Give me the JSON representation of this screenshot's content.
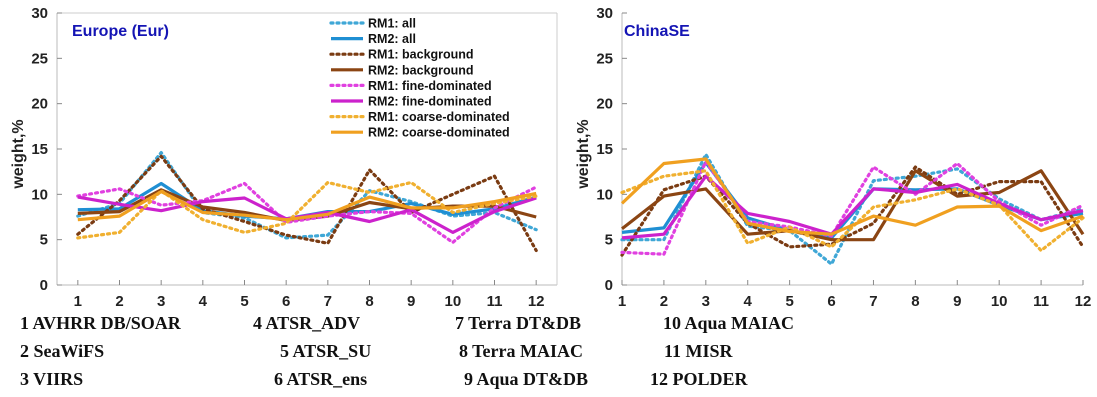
{
  "chart_data": [
    {
      "type": "line",
      "title": "Europe (Eur)",
      "xlabel": "",
      "ylabel": "weight,%",
      "x": [
        1,
        2,
        3,
        4,
        5,
        6,
        7,
        8,
        9,
        10,
        11,
        12
      ],
      "xlim": [
        0.5,
        12.5
      ],
      "ylim": [
        0,
        30
      ],
      "yticks": [
        0,
        5,
        10,
        15,
        20,
        25,
        30
      ],
      "legend": "top-right",
      "grid": false,
      "series": [
        {
          "name": "RM1: all",
          "color": "#3fa7d6",
          "style": "dotted",
          "values": [
            7.6,
            9.0,
            14.6,
            8.0,
            7.4,
            5.2,
            5.5,
            10.4,
            9.2,
            7.6,
            8.0,
            6.1
          ]
        },
        {
          "name": "RM2: all",
          "color": "#1f8fd3",
          "style": "solid",
          "values": [
            8.3,
            8.4,
            11.2,
            8.2,
            7.6,
            7.3,
            8.1,
            8.1,
            9.0,
            7.8,
            8.4,
            9.7
          ]
        },
        {
          "name": "RM1: background",
          "color": "#7a3b12",
          "style": "dotted",
          "values": [
            5.6,
            9.3,
            14.2,
            8.4,
            7.0,
            5.5,
            4.6,
            12.7,
            8.0,
            10.0,
            12.0,
            3.8
          ]
        },
        {
          "name": "RM2: background",
          "color": "#8b4513",
          "style": "solid",
          "values": [
            7.9,
            8.1,
            10.5,
            8.6,
            8.0,
            7.1,
            7.6,
            9.1,
            8.4,
            8.7,
            8.7,
            7.5
          ]
        },
        {
          "name": "RM1: fine-dominated",
          "color": "#e040e0",
          "style": "dotted",
          "values": [
            9.8,
            10.6,
            8.8,
            9.3,
            11.2,
            6.9,
            7.6,
            8.1,
            7.9,
            4.7,
            8.5,
            10.8
          ]
        },
        {
          "name": "RM2: fine-dominated",
          "color": "#cc22cc",
          "style": "solid",
          "values": [
            9.7,
            8.9,
            8.2,
            9.2,
            9.6,
            7.3,
            8.0,
            7.0,
            8.3,
            5.8,
            8.1,
            9.6
          ]
        },
        {
          "name": "RM1: coarse-dominated",
          "color": "#f0b030",
          "style": "dotted",
          "values": [
            5.2,
            5.8,
            10.4,
            7.2,
            5.8,
            6.8,
            11.3,
            10.2,
            11.3,
            8.0,
            9.0,
            9.8
          ]
        },
        {
          "name": "RM2: coarse-dominated",
          "color": "#f0a020",
          "style": "solid",
          "values": [
            7.2,
            7.6,
            10.3,
            8.0,
            7.7,
            7.2,
            7.8,
            9.7,
            8.5,
            8.5,
            9.2,
            10.1
          ]
        }
      ]
    },
    {
      "type": "line",
      "title": "ChinaSE",
      "xlabel": "",
      "ylabel": "weight,%",
      "x": [
        1,
        2,
        3,
        4,
        5,
        6,
        7,
        8,
        9,
        10,
        11,
        12
      ],
      "xlim": [
        1,
        12
      ],
      "ylim": [
        0,
        30
      ],
      "yticks": [
        0,
        5,
        10,
        15,
        20,
        25,
        30
      ],
      "grid": false,
      "series": [
        {
          "name": "RM1: all",
          "color": "#3fa7d6",
          "style": "dotted",
          "values": [
            5.0,
            5.0,
            14.4,
            6.5,
            6.0,
            2.3,
            11.5,
            12.0,
            12.8,
            9.5,
            7.2,
            8.4
          ]
        },
        {
          "name": "RM2: all",
          "color": "#1f8fd3",
          "style": "solid",
          "values": [
            5.8,
            6.3,
            13.5,
            7.4,
            6.0,
            5.2,
            10.6,
            10.5,
            10.6,
            8.8,
            7.2,
            7.9
          ]
        },
        {
          "name": "RM1: background",
          "color": "#7a3b12",
          "style": "dotted",
          "values": [
            3.3,
            10.5,
            12.0,
            6.8,
            4.2,
            4.5,
            6.8,
            13.0,
            10.0,
            11.4,
            11.4,
            4.2
          ]
        },
        {
          "name": "RM2: background",
          "color": "#8b4513",
          "style": "solid",
          "values": [
            6.2,
            9.8,
            10.6,
            5.6,
            6.0,
            5.0,
            5.0,
            12.6,
            9.8,
            10.2,
            12.6,
            5.6
          ]
        },
        {
          "name": "RM1: fine-dominated",
          "color": "#e040e0",
          "style": "dotted",
          "values": [
            3.6,
            3.4,
            13.6,
            7.0,
            6.4,
            5.4,
            13.0,
            10.0,
            13.4,
            9.2,
            6.6,
            8.8
          ]
        },
        {
          "name": "RM2: fine-dominated",
          "color": "#cc22cc",
          "style": "solid",
          "values": [
            5.2,
            5.6,
            12.0,
            7.9,
            7.0,
            5.6,
            10.6,
            10.2,
            11.1,
            9.0,
            7.2,
            8.2
          ]
        },
        {
          "name": "RM1: coarse-dominated",
          "color": "#f0b030",
          "style": "dotted",
          "values": [
            10.2,
            12.0,
            12.6,
            4.6,
            6.4,
            4.2,
            8.6,
            9.4,
            10.6,
            8.8,
            3.8,
            7.4
          ]
        },
        {
          "name": "RM2: coarse-dominated",
          "color": "#f0a020",
          "style": "solid",
          "values": [
            9.0,
            13.4,
            13.9,
            6.8,
            5.9,
            5.6,
            7.6,
            6.6,
            8.6,
            8.7,
            6.0,
            7.6
          ]
        }
      ]
    }
  ],
  "products": [
    "1  AVHRR DB/SOAR",
    "2  SeaWiFS",
    "3  VIIRS",
    "4  ATSR_ADV",
    "5  ATSR_SU",
    "6 ATSR_ens",
    "7 Terra DT&DB",
    "8  Terra MAIAC",
    "9  Aqua   DT&DB",
    "10 Aqua MAIAC",
    "11 MISR",
    "12 POLDER"
  ]
}
